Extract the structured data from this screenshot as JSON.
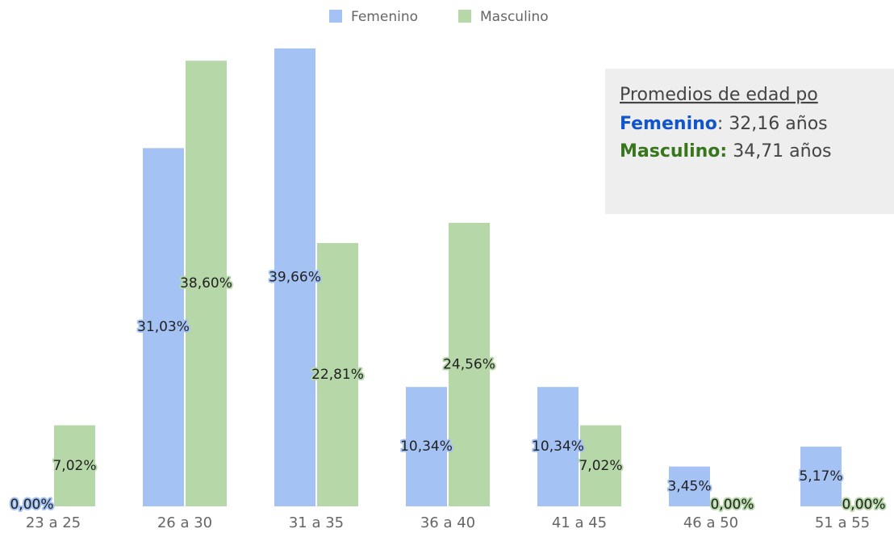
{
  "chart_data": {
    "type": "bar",
    "categories": [
      "23 a 25",
      "26 a 30",
      "31 a 35",
      "36 a 40",
      "41 a 45",
      "46 a 50",
      "51 a 55"
    ],
    "series": [
      {
        "name": "Femenino",
        "color": "#a4c2f4",
        "values": [
          0,
          31.03,
          39.66,
          10.34,
          10.34,
          3.45,
          5.17
        ],
        "value_labels": [
          "0,00%",
          "31,03%",
          "39,66%",
          "10,34%",
          "10,34%",
          "3,45%",
          "5,17%"
        ]
      },
      {
        "name": "Masculino",
        "color": "#b6d7a8",
        "values": [
          7.02,
          38.6,
          22.81,
          24.56,
          7.02,
          0,
          0
        ],
        "value_labels": [
          "7,02%",
          "38,60%",
          "22,81%",
          "24,56%",
          "7,02%",
          "0,00%",
          "0,00%"
        ]
      }
    ],
    "annotation": {
      "title": "Promedios de edad po",
      "lines": [
        {
          "label": "Femenino",
          "label_color": "#1155cc",
          "text": ": 32,16 años"
        },
        {
          "label": "Masculino:",
          "label_color": "#38761d",
          "text": " 34,71 años"
        }
      ]
    }
  }
}
